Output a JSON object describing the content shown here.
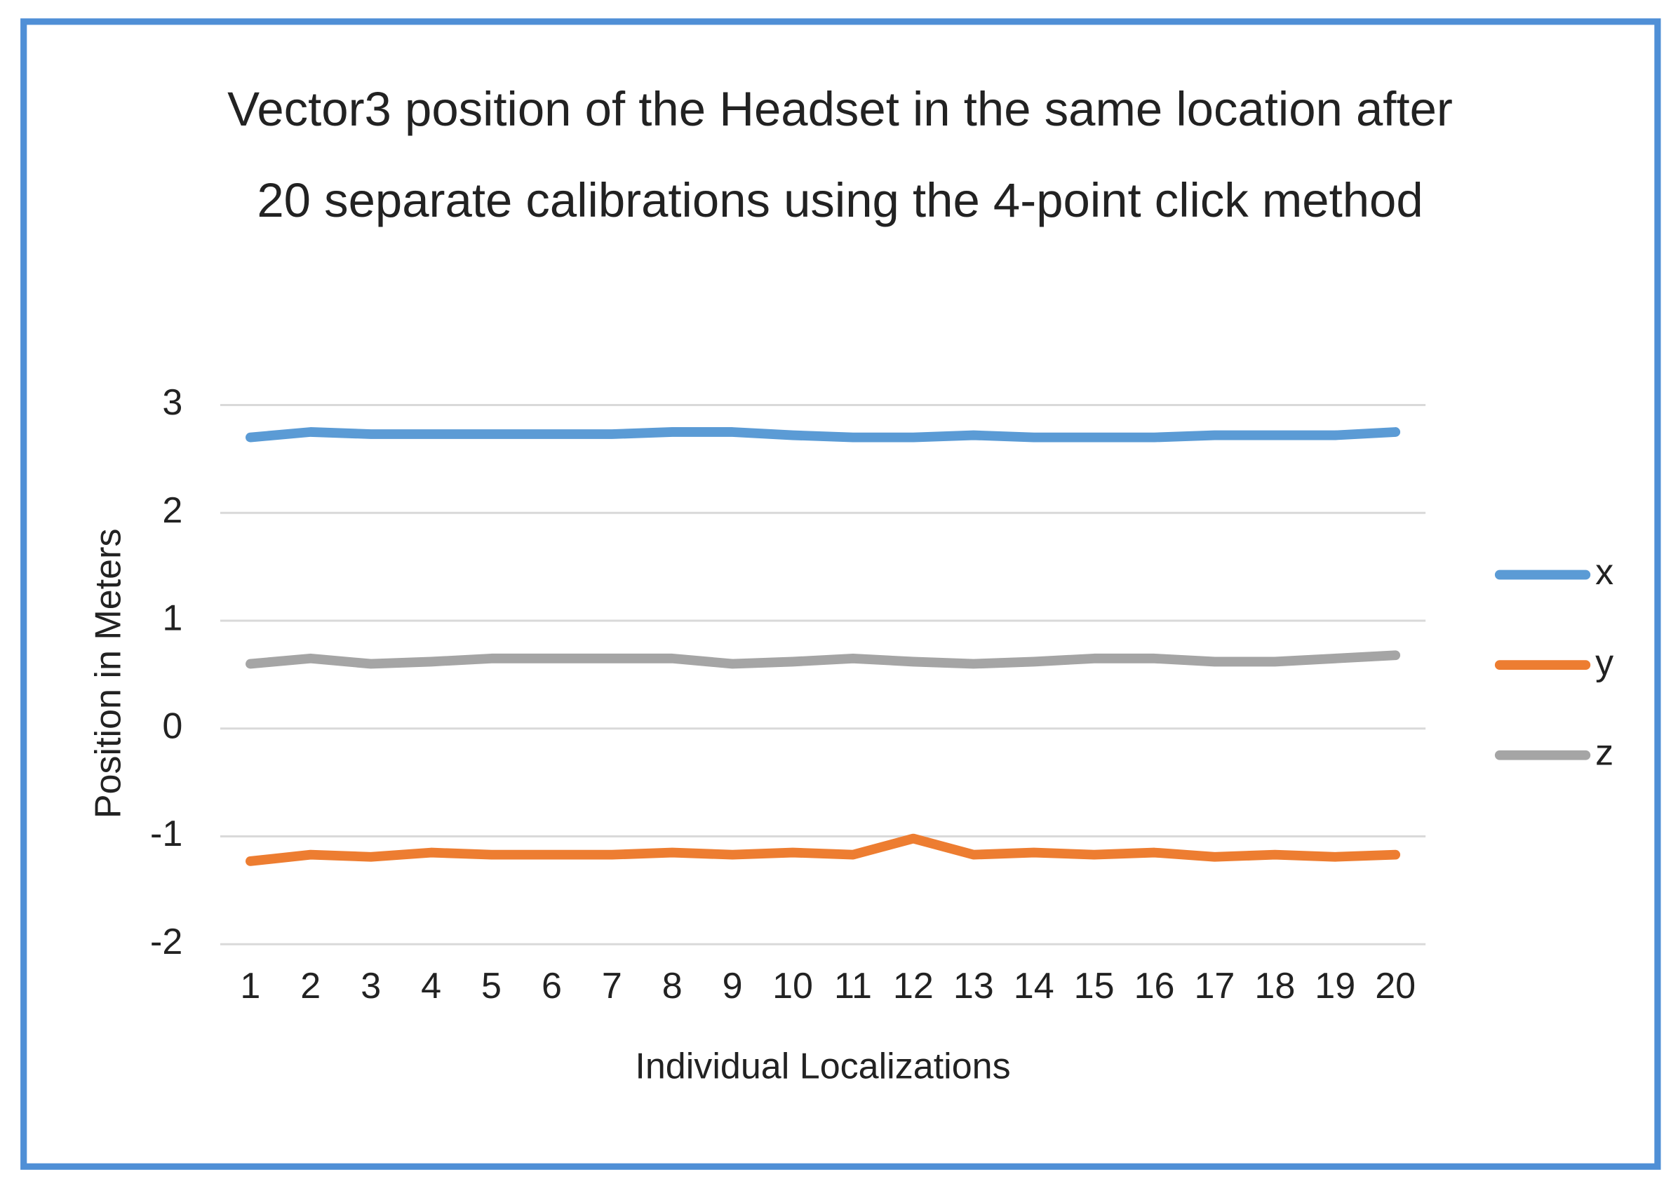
{
  "chart_data": {
    "type": "line",
    "title": "Vector3 position of the Headset in the same location after 20 separate calibrations using the 4-point click method",
    "x_label": "Individual Localizations",
    "y_label": "Position in Meters",
    "categories": [
      "1",
      "2",
      "3",
      "4",
      "5",
      "6",
      "7",
      "8",
      "9",
      "10",
      "11",
      "12",
      "13",
      "14",
      "15",
      "16",
      "17",
      "18",
      "19",
      "20"
    ],
    "series": [
      {
        "name": "x",
        "color": "#5b9bd5",
        "values": [
          2.7,
          2.75,
          2.73,
          2.73,
          2.73,
          2.73,
          2.73,
          2.75,
          2.75,
          2.72,
          2.7,
          2.7,
          2.72,
          2.7,
          2.7,
          2.7,
          2.72,
          2.72,
          2.72,
          2.75
        ]
      },
      {
        "name": "y",
        "color": "#ed7d31",
        "values": [
          -1.23,
          -1.17,
          -1.19,
          -1.15,
          -1.17,
          -1.17,
          -1.17,
          -1.15,
          -1.17,
          -1.15,
          -1.17,
          -1.02,
          -1.17,
          -1.15,
          -1.17,
          -1.15,
          -1.19,
          -1.17,
          -1.19,
          -1.17
        ]
      },
      {
        "name": "z",
        "color": "#a5a5a5",
        "values": [
          0.6,
          0.65,
          0.6,
          0.62,
          0.65,
          0.65,
          0.65,
          0.65,
          0.6,
          0.62,
          0.65,
          0.62,
          0.6,
          0.62,
          0.65,
          0.65,
          0.62,
          0.62,
          0.65,
          0.68
        ]
      }
    ],
    "ylim": [
      -2,
      3
    ],
    "yticks": [
      -2,
      -1,
      0,
      1,
      2,
      3
    ],
    "grid": true,
    "legend": "right"
  }
}
